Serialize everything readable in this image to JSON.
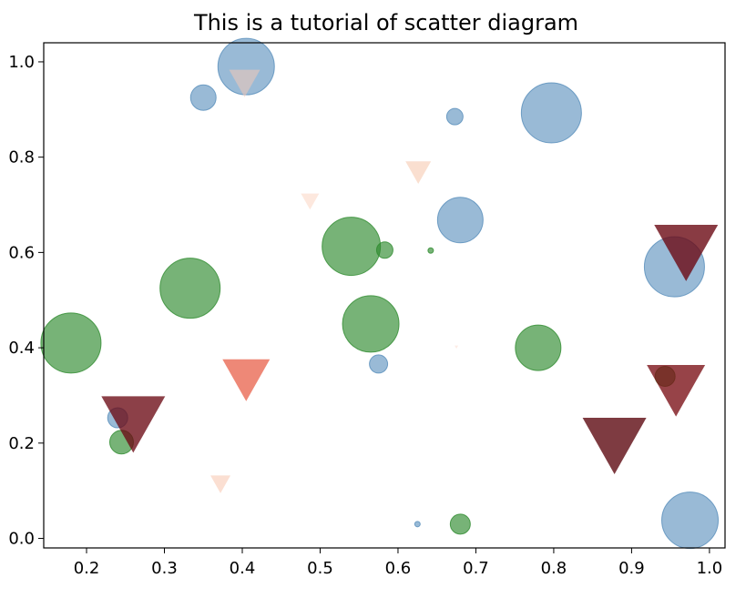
{
  "chart_data": {
    "type": "scatter",
    "title": "This is a tutorial of scatter diagram",
    "xlabel": "",
    "ylabel": "",
    "xlim": [
      0.145,
      1.02
    ],
    "ylim": [
      -0.02,
      1.04
    ],
    "x_ticks": [
      0.2,
      0.3,
      0.4,
      0.5,
      0.6,
      0.7,
      0.8,
      0.9,
      1.0
    ],
    "y_ticks": [
      0.0,
      0.2,
      0.4,
      0.6,
      0.8,
      1.0
    ],
    "x_tick_labels": [
      "0.2",
      "0.3",
      "0.4",
      "0.5",
      "0.6",
      "0.7",
      "0.8",
      "0.9",
      "1.0"
    ],
    "y_tick_labels": [
      "0.0",
      "0.2",
      "0.4",
      "0.6",
      "0.8",
      "1.0"
    ],
    "grid": false,
    "legend": false,
    "series": [
      {
        "marker": "circle",
        "color": "#4682B4",
        "opacity": 0.55,
        "points": [
          {
            "x": 0.405,
            "y": 0.99,
            "size": 31
          },
          {
            "x": 0.35,
            "y": 0.925,
            "size": 14
          },
          {
            "x": 0.673,
            "y": 0.885,
            "size": 9
          },
          {
            "x": 0.797,
            "y": 0.893,
            "size": 33
          },
          {
            "x": 0.68,
            "y": 0.668,
            "size": 25
          },
          {
            "x": 0.955,
            "y": 0.57,
            "size": 33
          },
          {
            "x": 0.575,
            "y": 0.366,
            "size": 10
          },
          {
            "x": 0.24,
            "y": 0.253,
            "size": 11
          },
          {
            "x": 0.625,
            "y": 0.03,
            "size": 3
          },
          {
            "x": 0.975,
            "y": 0.038,
            "size": 31
          }
        ]
      },
      {
        "marker": "circle",
        "color": "#2E8B2E",
        "opacity": 0.65,
        "points": [
          {
            "x": 0.18,
            "y": 0.41,
            "size": 33
          },
          {
            "x": 0.333,
            "y": 0.525,
            "size": 33
          },
          {
            "x": 0.54,
            "y": 0.613,
            "size": 32
          },
          {
            "x": 0.583,
            "y": 0.605,
            "size": 9
          },
          {
            "x": 0.642,
            "y": 0.604,
            "size": 3
          },
          {
            "x": 0.565,
            "y": 0.45,
            "size": 31
          },
          {
            "x": 0.78,
            "y": 0.4,
            "size": 25
          },
          {
            "x": 0.943,
            "y": 0.34,
            "size": 11
          },
          {
            "x": 0.245,
            "y": 0.202,
            "size": 13
          },
          {
            "x": 0.68,
            "y": 0.03,
            "size": 11
          }
        ]
      },
      {
        "marker": "triangle-down",
        "points": [
          {
            "x": 0.403,
            "y": 0.96,
            "size": 17,
            "color": "#F2C8B8",
            "opacity": 0.55
          },
          {
            "x": 0.626,
            "y": 0.772,
            "size": 14,
            "color": "#F7C9B0",
            "opacity": 0.6
          },
          {
            "x": 0.487,
            "y": 0.71,
            "size": 10,
            "color": "#FBD8C8",
            "opacity": 0.6
          },
          {
            "x": 0.97,
            "y": 0.61,
            "size": 35,
            "color": "#6B0A14",
            "opacity": 0.8
          },
          {
            "x": 0.405,
            "y": 0.34,
            "size": 26,
            "color": "#E8604A",
            "opacity": 0.75
          },
          {
            "x": 0.957,
            "y": 0.32,
            "size": 32,
            "color": "#7A0E14",
            "opacity": 0.78
          },
          {
            "x": 0.26,
            "y": 0.25,
            "size": 35,
            "color": "#6B0A14",
            "opacity": 0.78
          },
          {
            "x": 0.878,
            "y": 0.205,
            "size": 35,
            "color": "#5E0A12",
            "opacity": 0.8
          },
          {
            "x": 0.372,
            "y": 0.117,
            "size": 11,
            "color": "#F9C9B4",
            "opacity": 0.6
          },
          {
            "x": 0.675,
            "y": 0.402,
            "size": 2,
            "color": "#FBE0D4",
            "opacity": 0.6
          }
        ]
      }
    ]
  }
}
